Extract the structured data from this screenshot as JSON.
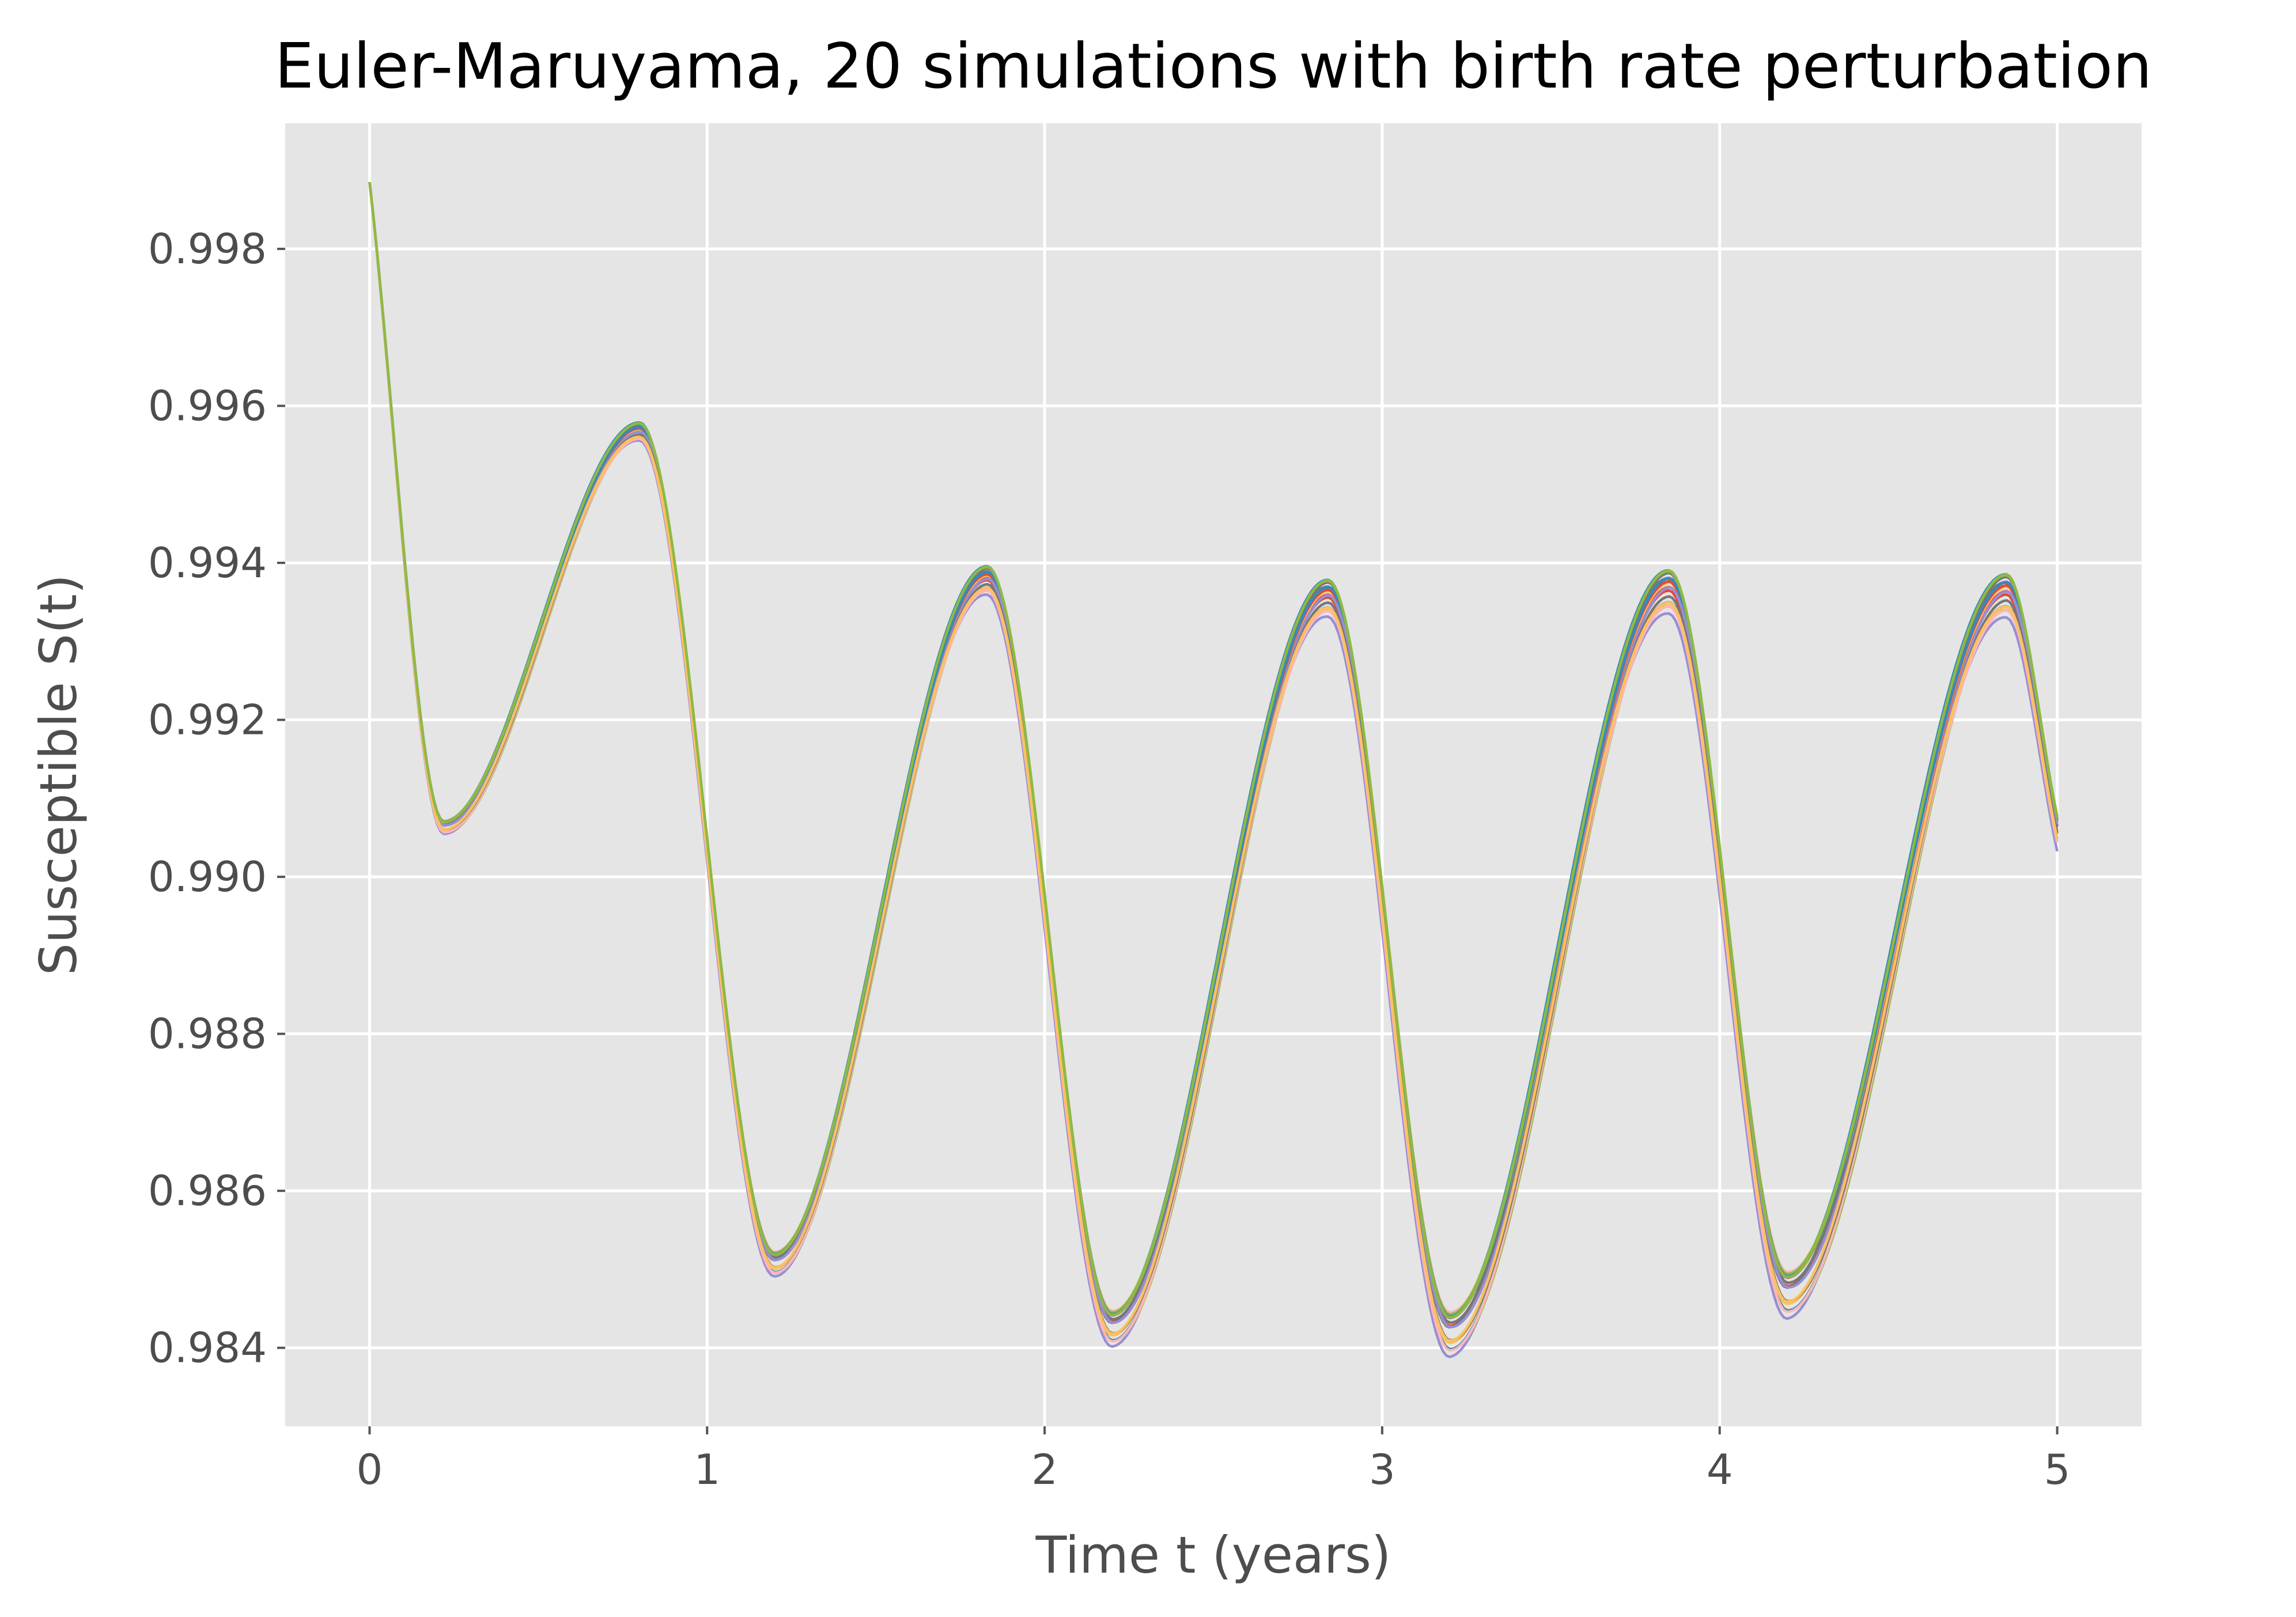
{
  "chart_data": {
    "type": "line",
    "title": "Euler-Maruyama, 20 simulations  with birth rate perturbation",
    "xlabel": "Time t (years)",
    "ylabel": "Susceptible S(t)",
    "xlim": [
      -0.25,
      5.25
    ],
    "ylim": [
      0.983,
      0.9996
    ],
    "xticks": [
      0,
      1,
      2,
      3,
      4,
      5
    ],
    "xtick_labels": [
      "0",
      "1",
      "2",
      "3",
      "4",
      "5"
    ],
    "yticks": [
      0.984,
      0.986,
      0.988,
      0.99,
      0.992,
      0.994,
      0.996,
      0.998
    ],
    "ytick_labels": [
      "0.984",
      "0.986",
      "0.988",
      "0.990",
      "0.992",
      "0.994",
      "0.996",
      "0.998"
    ],
    "grid": true,
    "legend": "none",
    "background_color": "#e5e5e5",
    "grid_color": "#ffffff",
    "series_count": 20,
    "series_colors": [
      "#e24a33",
      "#348abd",
      "#988ed5",
      "#777777",
      "#fbc15e",
      "#8eba42",
      "#ffb5b8",
      "#e24a33",
      "#348abd",
      "#988ed5",
      "#777777",
      "#fbc15e",
      "#8eba42",
      "#ffb5b8",
      "#e24a33",
      "#348abd",
      "#988ed5",
      "#777777",
      "#fbc15e",
      "#8eba42"
    ],
    "mean_curve": {
      "x": [
        0,
        0.22,
        0.8,
        1.2,
        1.83,
        2.2,
        2.84,
        3.2,
        3.85,
        4.2,
        4.85,
        5.0
      ],
      "y": [
        0.99885,
        0.99062,
        0.99565,
        0.98505,
        0.99375,
        0.98422,
        0.99352,
        0.98414,
        0.9936,
        0.98464,
        0.99355,
        0.99055
      ]
    },
    "spread": {
      "x": [
        0,
        0.22,
        0.8,
        1.2,
        1.83,
        2.2,
        2.84,
        3.2,
        3.85,
        4.2,
        4.85,
        5.0
      ],
      "y": [
        0,
        0.00012,
        0.00018,
        0.00022,
        0.00028,
        0.00032,
        0.00036,
        0.0004,
        0.00042,
        0.00042,
        0.00042,
        0.0003
      ]
    }
  }
}
